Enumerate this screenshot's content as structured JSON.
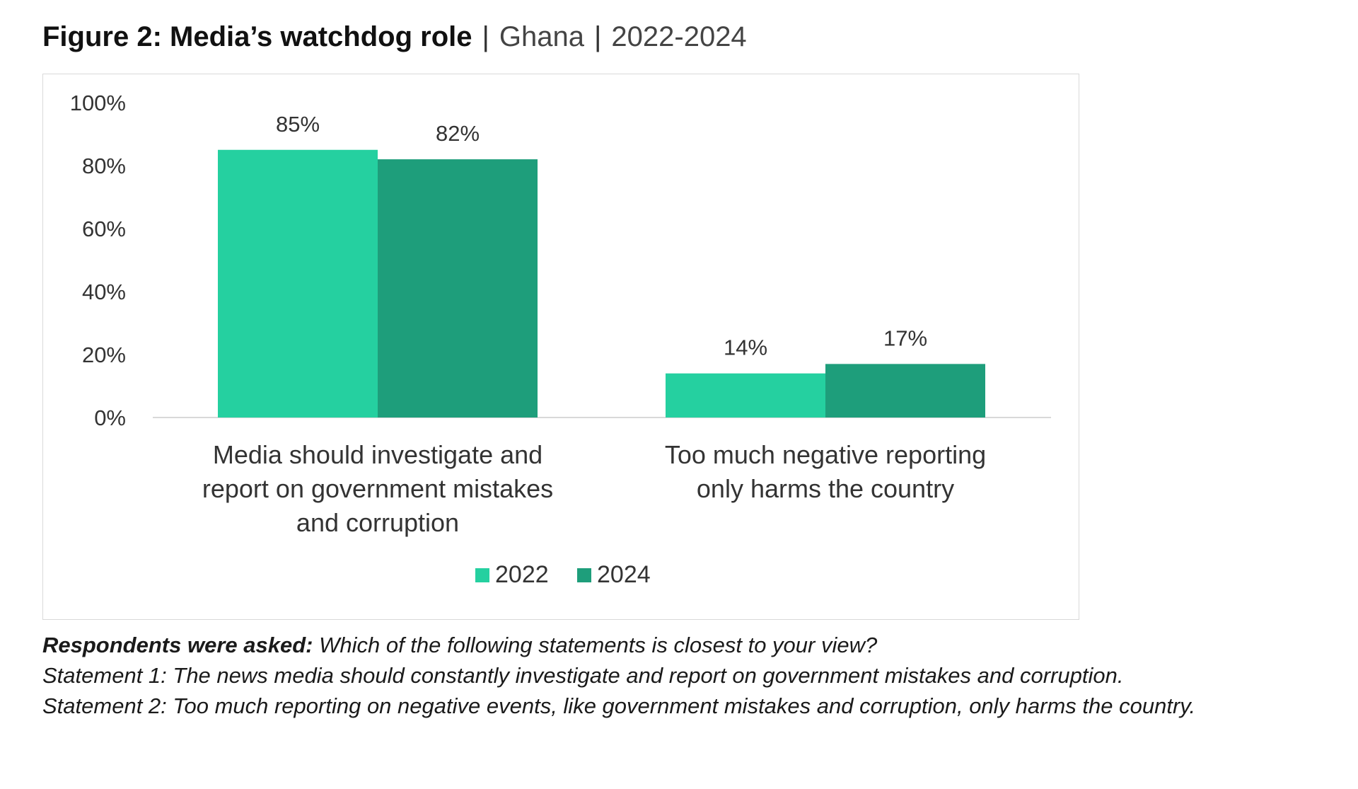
{
  "header": {
    "title_bold": "Figure 2: Media’s watchdog role",
    "separator": "|",
    "country": "Ghana",
    "years": "2022-2024"
  },
  "chart_data": {
    "type": "bar",
    "categories": [
      "Media should investigate and report on government mistakes and corruption",
      "Too much negative reporting only harms the country"
    ],
    "category_label_lines": [
      [
        "Media should investigate and",
        "report on government mistakes",
        "and corruption"
      ],
      [
        "Too much negative reporting",
        "only harms the country"
      ]
    ],
    "series": [
      {
        "name": "2022",
        "values": [
          85,
          14
        ],
        "color": "#25d0a0"
      },
      {
        "name": "2024",
        "values": [
          82,
          17
        ],
        "color": "#1e9e7b"
      }
    ],
    "data_labels": [
      [
        "85%",
        "14%"
      ],
      [
        "82%",
        "17%"
      ]
    ],
    "ylim": [
      0,
      100
    ],
    "y_ticks": [
      0,
      20,
      40,
      60,
      80,
      100
    ],
    "y_tick_labels": [
      "0%",
      "20%",
      "40%",
      "60%",
      "80%",
      "100%"
    ],
    "xlabel": "",
    "ylabel": "",
    "grid": false,
    "legend_position": "bottom"
  },
  "notes": {
    "question_label": "Respondents were asked:",
    "question_text": "Which of the following statements is closest to your view?",
    "statement1": "Statement 1: The news media should constantly investigate and report on government mistakes and corruption.",
    "statement2": "Statement 2: Too much reporting on negative events, like government mistakes and corruption, only harms the country."
  }
}
